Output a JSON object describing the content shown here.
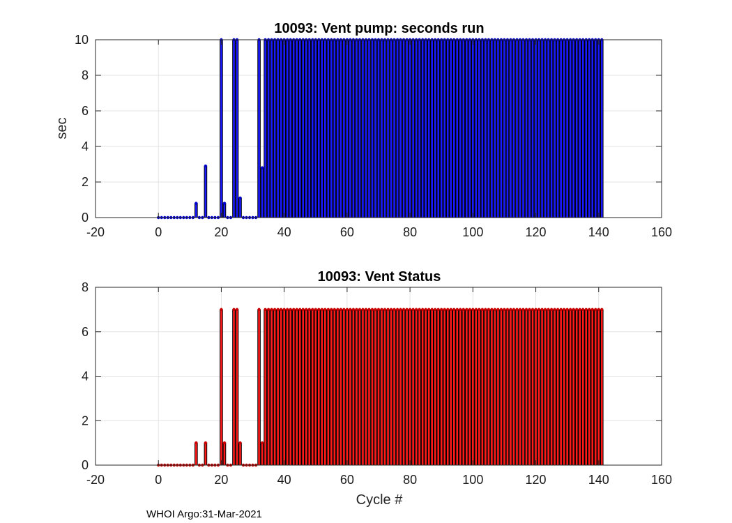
{
  "chart_data": [
    {
      "type": "bar",
      "title": "10093: Vent pump: seconds run",
      "xlabel": "",
      "ylabel": "sec",
      "xlim": [
        -20,
        160
      ],
      "ylim": [
        0,
        10
      ],
      "xticks": [
        -20,
        0,
        20,
        40,
        60,
        80,
        100,
        120,
        140,
        160
      ],
      "yticks": [
        0,
        2,
        4,
        6,
        8,
        10
      ],
      "grid": true,
      "bar_color": "#1a1aff",
      "edge_color": "#000000",
      "marker_color": "#0000cc",
      "cycles_start": 0,
      "values": [
        0,
        0,
        0,
        0,
        0,
        0,
        0,
        0,
        0,
        0,
        0,
        0,
        0.8,
        0,
        0,
        2.9,
        0,
        0,
        0,
        0,
        10,
        0.8,
        0,
        0,
        10,
        10,
        1.1,
        0,
        0,
        0,
        0,
        0,
        10,
        2.8,
        10,
        10,
        10,
        10,
        10,
        10,
        10,
        10,
        10,
        10,
        10,
        10,
        10,
        10,
        10,
        10,
        10,
        10,
        10,
        10,
        10,
        10,
        10,
        10,
        10,
        10,
        10,
        10,
        10,
        10,
        10,
        10,
        10,
        10,
        10,
        10,
        10,
        10,
        10,
        10,
        10,
        10,
        10,
        10,
        10,
        10,
        10,
        10,
        10,
        10,
        10,
        10,
        10,
        10,
        10,
        10,
        10,
        10,
        10,
        10,
        10,
        10,
        10,
        10,
        10,
        10,
        10,
        10,
        10,
        10,
        10,
        10,
        10,
        10,
        10,
        10,
        10,
        10,
        10,
        10,
        10,
        10,
        10,
        10,
        10,
        10,
        10,
        10,
        10,
        10,
        10,
        10,
        10,
        10,
        10,
        10,
        10,
        10,
        10,
        10,
        10,
        10,
        10,
        10,
        10,
        10,
        10,
        10
      ]
    },
    {
      "type": "bar",
      "title": "10093: Vent Status",
      "xlabel": "Cycle #",
      "ylabel": "",
      "xlim": [
        -20,
        160
      ],
      "ylim": [
        0,
        8
      ],
      "xticks": [
        -20,
        0,
        20,
        40,
        60,
        80,
        100,
        120,
        140,
        160
      ],
      "yticks": [
        0,
        2,
        4,
        6,
        8
      ],
      "grid": true,
      "bar_color": "#ff1a1a",
      "edge_color": "#000000",
      "marker_color": "#cc0000",
      "cycles_start": 0,
      "values": [
        0,
        0,
        0,
        0,
        0,
        0,
        0,
        0,
        0,
        0,
        0,
        0,
        1,
        0,
        0,
        1,
        0,
        0,
        0,
        0,
        7,
        1,
        0,
        0,
        7,
        7,
        1,
        0,
        0,
        0,
        0,
        0,
        7,
        1,
        7,
        7,
        7,
        7,
        7,
        7,
        7,
        7,
        7,
        7,
        7,
        7,
        7,
        7,
        7,
        7,
        7,
        7,
        7,
        7,
        7,
        7,
        7,
        7,
        7,
        7,
        7,
        7,
        7,
        7,
        7,
        7,
        7,
        7,
        7,
        7,
        7,
        7,
        7,
        7,
        7,
        7,
        7,
        7,
        7,
        7,
        7,
        7,
        7,
        7,
        7,
        7,
        7,
        7,
        7,
        7,
        7,
        7,
        7,
        7,
        7,
        7,
        7,
        7,
        7,
        7,
        7,
        7,
        7,
        7,
        7,
        7,
        7,
        7,
        7,
        7,
        7,
        7,
        7,
        7,
        7,
        7,
        7,
        7,
        7,
        7,
        7,
        7,
        7,
        7,
        7,
        7,
        7,
        7,
        7,
        7,
        7,
        7,
        7,
        7,
        7,
        7,
        7,
        7,
        7,
        7,
        7,
        7
      ]
    }
  ],
  "footer": {
    "text": "WHOI Argo:31-Mar-2021"
  }
}
